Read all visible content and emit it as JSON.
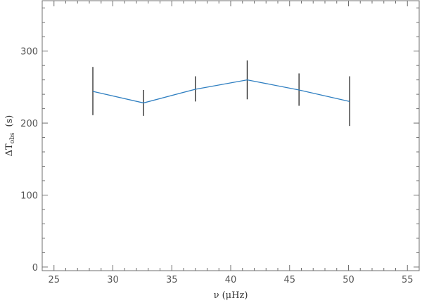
{
  "chart_data": {
    "type": "line",
    "title": "",
    "xlabel": "ν  (μHz)",
    "ylabel_main": "ΔT",
    "ylabel_sub": "obs",
    "ylabel_unit": "(s)",
    "xlim": [
      24,
      56
    ],
    "ylim": [
      -5,
      370
    ],
    "x_ticks": [
      25,
      30,
      35,
      40,
      45,
      50,
      55
    ],
    "y_ticks": [
      0,
      100,
      200,
      300
    ],
    "grid": false,
    "series": [
      {
        "x": [
          28.3,
          32.6,
          37.0,
          41.4,
          45.8,
          50.1
        ],
        "y": [
          244,
          228,
          247,
          260,
          246,
          230
        ],
        "err_low": [
          211,
          210,
          230,
          233,
          224,
          196
        ],
        "err_high": [
          278,
          246,
          265,
          287,
          269,
          265
        ],
        "color": "#2f7fc1"
      }
    ]
  }
}
